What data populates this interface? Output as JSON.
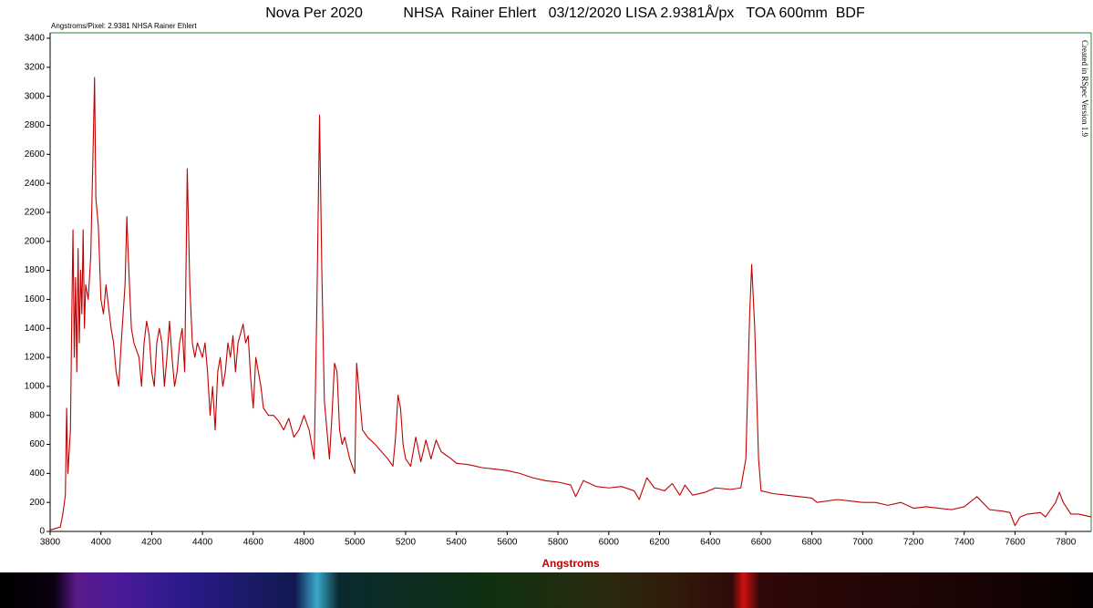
{
  "chart_data": {
    "type": "line",
    "title": "Nova Per 2020          NHSA  Rainer Ehlert   03/12/2020 LISA 2.9381Å/px   TOA 600mm  BDF",
    "subtitle": "Angstroms/Pixel: 2.9381 NHSA Rainer Ehlert",
    "annotation": "Created in RSpec Version 1.9",
    "x_label": "Angstroms",
    "xlim": [
      3800,
      7900
    ],
    "ylim": [
      0,
      3400
    ],
    "xticks": [
      3800,
      4000,
      4200,
      4400,
      4600,
      4800,
      5000,
      5200,
      5400,
      5600,
      5800,
      6000,
      6200,
      6400,
      6600,
      6800,
      7000,
      7200,
      7400,
      7600,
      7800
    ],
    "yticks": [
      0,
      200,
      400,
      600,
      800,
      1000,
      1200,
      1400,
      1600,
      1800,
      2000,
      2200,
      2400,
      2600,
      2800,
      3000,
      3200,
      3400
    ],
    "x": [
      3800,
      3820,
      3840,
      3850,
      3860,
      3865,
      3870,
      3880,
      3885,
      3890,
      3895,
      3900,
      3905,
      3910,
      3915,
      3920,
      3925,
      3930,
      3935,
      3940,
      3950,
      3960,
      3970,
      3975,
      3980,
      3990,
      4000,
      4010,
      4020,
      4030,
      4040,
      4050,
      4060,
      4070,
      4080,
      4095,
      4102,
      4110,
      4120,
      4130,
      4150,
      4160,
      4170,
      4180,
      4190,
      4200,
      4210,
      4220,
      4230,
      4240,
      4250,
      4260,
      4270,
      4280,
      4290,
      4300,
      4310,
      4320,
      4330,
      4340,
      4350,
      4360,
      4370,
      4380,
      4390,
      4400,
      4410,
      4420,
      4430,
      4440,
      4450,
      4460,
      4470,
      4480,
      4490,
      4500,
      4510,
      4520,
      4530,
      4540,
      4560,
      4570,
      4580,
      4590,
      4600,
      4610,
      4620,
      4630,
      4640,
      4660,
      4680,
      4700,
      4720,
      4740,
      4760,
      4780,
      4800,
      4820,
      4840,
      4850,
      4861,
      4870,
      4880,
      4890,
      4900,
      4910,
      4920,
      4930,
      4940,
      4950,
      4960,
      4980,
      5000,
      5007,
      5015,
      5030,
      5050,
      5080,
      5100,
      5130,
      5150,
      5160,
      5170,
      5180,
      5190,
      5200,
      5220,
      5240,
      5260,
      5280,
      5300,
      5320,
      5340,
      5380,
      5400,
      5450,
      5500,
      5550,
      5600,
      5650,
      5700,
      5750,
      5800,
      5850,
      5870,
      5900,
      5950,
      6000,
      6050,
      6100,
      6120,
      6150,
      6180,
      6220,
      6250,
      6280,
      6300,
      6330,
      6380,
      6420,
      6480,
      6520,
      6540,
      6555,
      6563,
      6575,
      6590,
      6600,
      6650,
      6700,
      6750,
      6800,
      6820,
      6900,
      6950,
      7000,
      7050,
      7100,
      7150,
      7200,
      7250,
      7300,
      7350,
      7400,
      7450,
      7500,
      7550,
      7580,
      7600,
      7620,
      7650,
      7700,
      7720,
      7760,
      7775,
      7790,
      7820,
      7850,
      7900
    ],
    "series": [
      {
        "color": "#c00000",
        "values": [
          10,
          20,
          30,
          120,
          250,
          850,
          400,
          700,
          1450,
          2080,
          1200,
          1750,
          1100,
          1950,
          1300,
          1800,
          1500,
          2080,
          1400,
          1700,
          1600,
          1900,
          2700,
          3130,
          2300,
          2100,
          1600,
          1500,
          1700,
          1550,
          1400,
          1300,
          1100,
          1000,
          1300,
          1700,
          2170,
          1800,
          1400,
          1300,
          1200,
          1000,
          1300,
          1450,
          1350,
          1100,
          1000,
          1300,
          1400,
          1300,
          1000,
          1200,
          1450,
          1200,
          1000,
          1100,
          1300,
          1400,
          1100,
          2500,
          1700,
          1300,
          1200,
          1300,
          1250,
          1200,
          1300,
          1100,
          800,
          1000,
          700,
          1100,
          1200,
          1000,
          1100,
          1300,
          1200,
          1350,
          1100,
          1300,
          1430,
          1300,
          1350,
          1050,
          850,
          1200,
          1100,
          1000,
          850,
          800,
          800,
          760,
          700,
          780,
          650,
          700,
          800,
          700,
          500,
          1500,
          2870,
          1800,
          900,
          700,
          500,
          800,
          1160,
          1100,
          700,
          600,
          650,
          500,
          400,
          1160,
          1000,
          700,
          650,
          600,
          560,
          500,
          450,
          640,
          940,
          850,
          600,
          500,
          450,
          650,
          480,
          630,
          500,
          630,
          550,
          500,
          470,
          460,
          440,
          430,
          420,
          400,
          370,
          350,
          340,
          320,
          240,
          350,
          310,
          300,
          310,
          280,
          220,
          370,
          300,
          280,
          330,
          250,
          320,
          250,
          270,
          300,
          290,
          300,
          500,
          1500,
          1840,
          1400,
          500,
          280,
          260,
          250,
          240,
          230,
          200,
          220,
          210,
          200,
          200,
          180,
          200,
          160,
          170,
          160,
          150,
          170,
          240,
          150,
          140,
          130,
          40,
          100,
          120,
          130,
          100,
          200,
          270,
          200,
          120,
          120,
          100
        ]
      }
    ]
  }
}
